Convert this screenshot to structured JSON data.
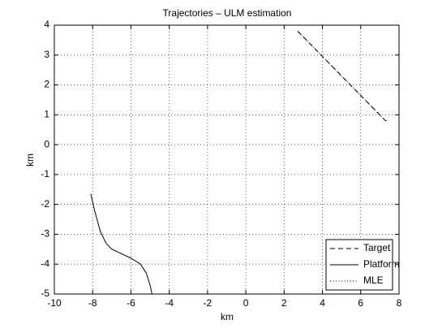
{
  "chart_data": {
    "type": "line",
    "title": "Trajectories – ULM estimation",
    "x_label": "km",
    "y_label": "km",
    "xlim": [
      -10,
      8
    ],
    "ylim": [
      -5,
      4
    ],
    "xticks": [
      -10,
      -8,
      -6,
      -4,
      -2,
      0,
      2,
      4,
      6,
      8
    ],
    "yticks": [
      -5,
      -4,
      -3,
      -2,
      -1,
      0,
      1,
      2,
      3,
      4
    ],
    "grid": true,
    "legend": "southeast",
    "series": [
      {
        "name": "Target",
        "color": "#000000",
        "linestyle": "dashed",
        "x": [
          2.7,
          7.3,
          7.5
        ],
        "values": [
          3.8,
          0.8,
          0.85
        ]
      },
      {
        "name": "Platform",
        "color": "#000000",
        "linestyle": "solid",
        "x": [
          -8.1,
          -7.9,
          -7.6,
          -7.3,
          -7.0,
          -6.5,
          -6.0,
          -5.5,
          -5.2,
          -5.0,
          -4.9
        ],
        "values": [
          -1.65,
          -2.2,
          -2.9,
          -3.3,
          -3.5,
          -3.65,
          -3.8,
          -4.0,
          -4.3,
          -4.7,
          -5.0
        ]
      },
      {
        "name": "MLE",
        "color": "#000000",
        "linestyle": "dotted",
        "x": [
          2.8,
          7.2
        ],
        "values": [
          3.75,
          0.85
        ]
      }
    ]
  }
}
